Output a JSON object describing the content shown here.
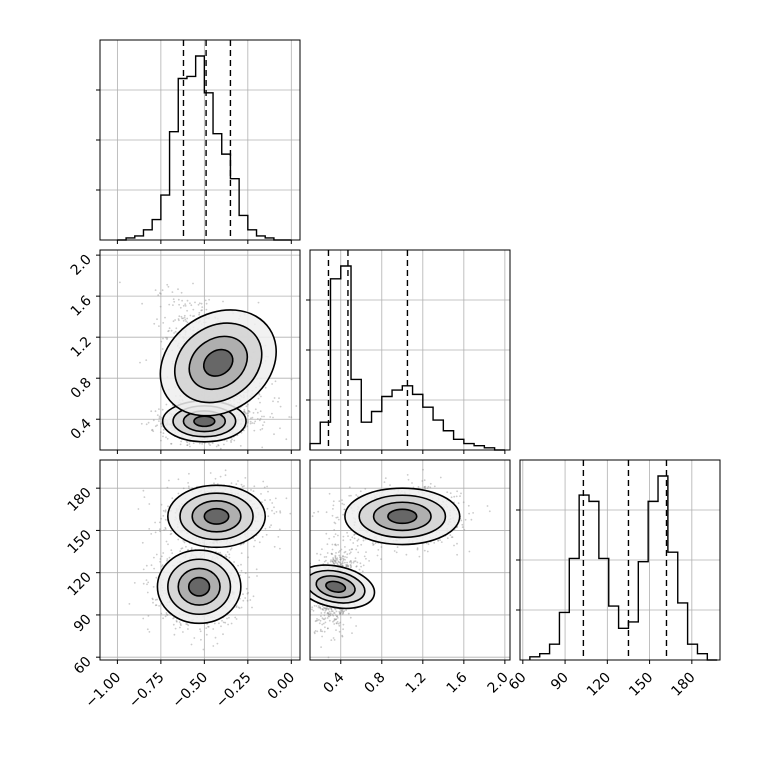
{
  "chart_data": {
    "type": "corner",
    "params": [
      {
        "range": [
          -1.1,
          0.05
        ],
        "ticks": [
          -1.0,
          -0.75,
          -0.5,
          -0.25,
          0.0
        ],
        "tick_labels": [
          "−1.00",
          "−0.75",
          "−0.50",
          "−0.25",
          "0.00"
        ],
        "quantiles": [
          -0.62,
          -0.49,
          -0.35
        ]
      },
      {
        "range": [
          0.1,
          2.05
        ],
        "ticks": [
          0.4,
          0.8,
          1.2,
          1.6,
          2.0
        ],
        "tick_labels": [
          "0.4",
          "0.8",
          "1.2",
          "1.6",
          "2.0"
        ],
        "quantiles": [
          0.28,
          0.47,
          1.05
        ]
      },
      {
        "range": [
          58,
          200
        ],
        "ticks": [
          60,
          90,
          120,
          150,
          180
        ],
        "tick_labels": [
          "60",
          "90",
          "120",
          "150",
          "180"
        ],
        "quantiles": [
          103,
          135,
          162
        ]
      }
    ],
    "hist_ylim_fraction": 1.0,
    "histograms": [
      {
        "param": 0,
        "edges": [
          -1.0,
          -0.95,
          -0.9,
          -0.85,
          -0.8,
          -0.75,
          -0.7,
          -0.65,
          -0.6,
          -0.55,
          -0.5,
          -0.45,
          -0.4,
          -0.35,
          -0.3,
          -0.25,
          -0.2,
          -0.15,
          -0.1,
          -0.05,
          0.0
        ],
        "counts": [
          0.0,
          0.01,
          0.02,
          0.05,
          0.1,
          0.22,
          0.53,
          0.79,
          0.8,
          0.9,
          0.72,
          0.52,
          0.42,
          0.3,
          0.12,
          0.05,
          0.02,
          0.01,
          0,
          0
        ]
      },
      {
        "param": 1,
        "edges": [
          0.1,
          0.2,
          0.3,
          0.4,
          0.5,
          0.6,
          0.7,
          0.8,
          0.9,
          1.0,
          1.1,
          1.2,
          1.3,
          1.4,
          1.5,
          1.6,
          1.7,
          1.8,
          1.9,
          2.0
        ],
        "counts": [
          0.03,
          0.13,
          0.8,
          0.86,
          0.33,
          0.13,
          0.18,
          0.25,
          0.28,
          0.3,
          0.26,
          0.2,
          0.14,
          0.09,
          0.05,
          0.03,
          0.02,
          0.01,
          0.0
        ]
      },
      {
        "param": 2,
        "edges": [
          65,
          72,
          79,
          86,
          93,
          100,
          107,
          114,
          121,
          128,
          135,
          142,
          149,
          156,
          163,
          170,
          177,
          184,
          191,
          198
        ],
        "counts": [
          0.01,
          0.02,
          0.05,
          0.15,
          0.32,
          0.52,
          0.5,
          0.32,
          0.17,
          0.1,
          0.12,
          0.31,
          0.5,
          0.58,
          0.34,
          0.18,
          0.05,
          0.02,
          0.0
        ]
      }
    ],
    "pairs": [
      {
        "x_param": 0,
        "y_param": 1,
        "modes": [
          {
            "mu": [
              -0.5,
              0.38
            ],
            "sigma": [
              0.12,
              0.1
            ],
            "rho": 0.0,
            "weight": 0.5
          },
          {
            "mu": [
              -0.42,
              0.95
            ],
            "sigma": [
              0.14,
              0.3
            ],
            "rho": -0.55,
            "weight": 0.5
          }
        ]
      },
      {
        "x_param": 0,
        "y_param": 2,
        "modes": [
          {
            "mu": [
              -0.53,
              110
            ],
            "sigma": [
              0.12,
              13
            ],
            "rho": 0.0,
            "weight": 0.5
          },
          {
            "mu": [
              -0.43,
              160
            ],
            "sigma": [
              0.14,
              11
            ],
            "rho": 0.0,
            "weight": 0.5
          }
        ]
      },
      {
        "x_param": 1,
        "y_param": 2,
        "modes": [
          {
            "mu": [
              0.35,
              110
            ],
            "sigma": [
              0.1,
              14
            ],
            "rho": 0.3,
            "weight": 0.5
          },
          {
            "mu": [
              1.0,
              160
            ],
            "sigma": [
              0.28,
              10
            ],
            "rho": 0.0,
            "weight": 0.5
          }
        ]
      }
    ],
    "contour_levels_sigma": [
      0.5,
      1.0,
      1.5,
      2.0
    ],
    "grid": true,
    "colors": {
      "lines": "#000000",
      "grid": "#b0b0b0",
      "scatter": "#8c8c8c",
      "background": "#ffffff"
    }
  }
}
